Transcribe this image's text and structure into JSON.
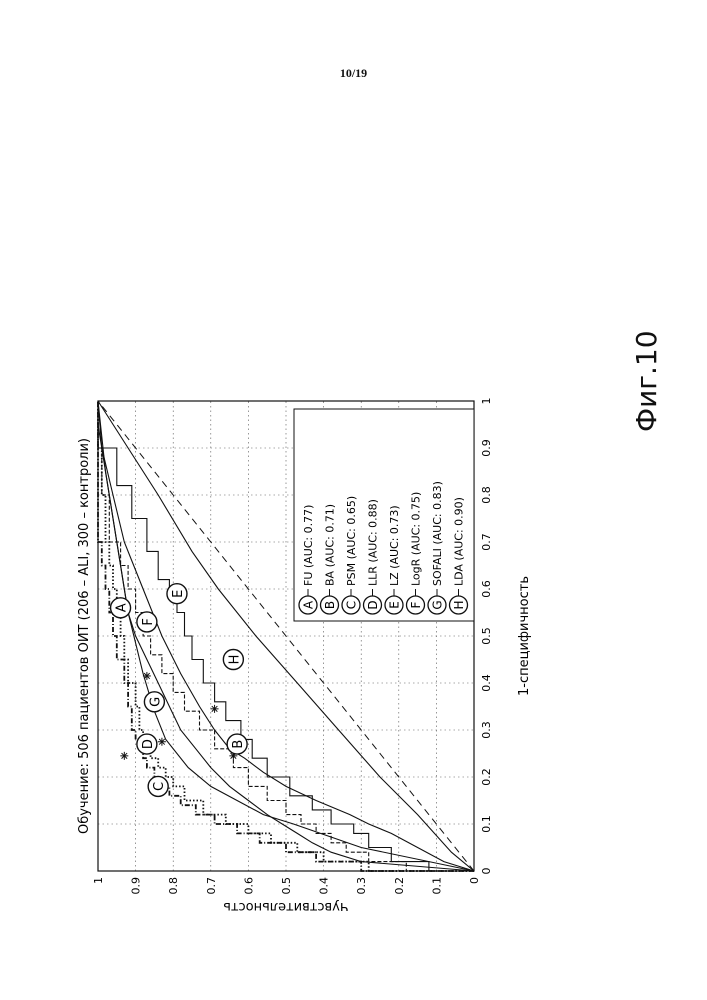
{
  "page_number": "10/19",
  "figure_caption": "Фиг.10",
  "chart_data": {
    "type": "line",
    "title": "Обучение: 506 пациентов ОИТ (206 – ALI, 300 – контроли)",
    "xlabel": "1-специфичность",
    "ylabel": "Чувствительность",
    "xlim": [
      0,
      1
    ],
    "ylim": [
      0,
      1
    ],
    "xticks": [
      "0",
      "0.1",
      "0.2",
      "0.3",
      "0.4",
      "0.5",
      "0.6",
      "0.7",
      "0.8",
      "0.9",
      "1"
    ],
    "yticks": [
      "0",
      "0.1",
      "0.2",
      "0.3",
      "0.4",
      "0.5",
      "0.6",
      "0.7",
      "0.8",
      "0.9",
      "1"
    ],
    "grid": true,
    "legend_position": "lower-right",
    "series": [
      {
        "name": "FU (AUC: 0.77)",
        "marker": "A",
        "style": "solid",
        "x": [
          0,
          0.02,
          0.04,
          0.06,
          0.08,
          0.1,
          0.12,
          0.15,
          0.18,
          0.22,
          0.26,
          0.3,
          0.35,
          0.4,
          0.45,
          0.5,
          0.55,
          0.6,
          0.65,
          0.7,
          0.75,
          0.8,
          0.85,
          0.9,
          0.95,
          1.0
        ],
        "y": [
          0,
          0.3,
          0.38,
          0.43,
          0.47,
          0.51,
          0.55,
          0.6,
          0.65,
          0.7,
          0.74,
          0.78,
          0.81,
          0.84,
          0.87,
          0.9,
          0.92,
          0.93,
          0.94,
          0.95,
          0.96,
          0.97,
          0.98,
          0.99,
          1.0,
          1.0
        ]
      },
      {
        "name": "BA (AUC: 0.71)",
        "marker": "B",
        "style": "solid",
        "x": [
          0,
          0.02,
          0.05,
          0.08,
          0.1,
          0.12,
          0.15,
          0.18,
          0.21,
          0.24,
          0.26,
          0.3,
          0.35,
          0.42,
          0.5,
          0.6,
          0.7,
          0.8,
          0.9,
          1.0
        ],
        "y": [
          0,
          0.08,
          0.15,
          0.22,
          0.28,
          0.33,
          0.42,
          0.5,
          0.56,
          0.61,
          0.65,
          0.69,
          0.73,
          0.78,
          0.83,
          0.88,
          0.93,
          0.96,
          0.99,
          1.0
        ]
      },
      {
        "name": "PSM (AUC: 0.65)",
        "marker": "C",
        "style": "dotted",
        "x": [
          0,
          0.02,
          0.04,
          0.06,
          0.08,
          0.1,
          0.12,
          0.15,
          0.18,
          0.2,
          0.22,
          0.24,
          0.27,
          0.3,
          0.35,
          0.4,
          0.45,
          0.5,
          0.55,
          0.6,
          0.65,
          0.7,
          0.8,
          0.9,
          1.0
        ],
        "y": [
          0,
          0.28,
          0.4,
          0.47,
          0.54,
          0.6,
          0.66,
          0.72,
          0.77,
          0.8,
          0.82,
          0.84,
          0.86,
          0.88,
          0.89,
          0.9,
          0.92,
          0.93,
          0.94,
          0.95,
          0.96,
          0.97,
          0.98,
          0.99,
          1.0
        ]
      },
      {
        "name": "LLR (AUC: 0.88)",
        "marker": "D",
        "style": "dash-dot",
        "x": [
          0,
          0.02,
          0.04,
          0.06,
          0.08,
          0.1,
          0.12,
          0.14,
          0.16,
          0.18,
          0.2,
          0.22,
          0.24,
          0.26,
          0.28,
          0.3,
          0.35,
          0.4,
          0.45,
          0.5,
          0.55,
          0.6,
          0.65,
          0.7,
          0.8,
          0.9,
          1.0
        ],
        "y": [
          0,
          0.3,
          0.42,
          0.5,
          0.57,
          0.63,
          0.69,
          0.74,
          0.78,
          0.81,
          0.83,
          0.85,
          0.87,
          0.88,
          0.89,
          0.9,
          0.91,
          0.92,
          0.93,
          0.95,
          0.96,
          0.97,
          0.98,
          0.99,
          1.0,
          1.0,
          1.0
        ]
      },
      {
        "name": "LZ (AUC: 0.73)",
        "marker": "E",
        "style": "solid-steps",
        "x": [
          0,
          0.02,
          0.05,
          0.08,
          0.1,
          0.13,
          0.16,
          0.2,
          0.24,
          0.28,
          0.32,
          0.36,
          0.4,
          0.45,
          0.5,
          0.55,
          0.58,
          0.62,
          0.68,
          0.75,
          0.82,
          0.9,
          1.0
        ],
        "y": [
          0,
          0.12,
          0.22,
          0.28,
          0.32,
          0.38,
          0.43,
          0.49,
          0.55,
          0.59,
          0.62,
          0.66,
          0.69,
          0.72,
          0.75,
          0.77,
          0.79,
          0.81,
          0.84,
          0.87,
          0.91,
          0.95,
          1.0
        ]
      },
      {
        "name": "LogR (AUC: 0.75)",
        "marker": "F",
        "style": "dashed-steps",
        "x": [
          0,
          0.02,
          0.04,
          0.06,
          0.08,
          0.1,
          0.12,
          0.15,
          0.18,
          0.22,
          0.26,
          0.3,
          0.34,
          0.38,
          0.42,
          0.46,
          0.5,
          0.55,
          0.6,
          0.65,
          0.7,
          0.8,
          0.9,
          1.0
        ],
        "y": [
          0,
          0.18,
          0.28,
          0.34,
          0.38,
          0.42,
          0.46,
          0.5,
          0.55,
          0.6,
          0.64,
          0.69,
          0.73,
          0.77,
          0.8,
          0.83,
          0.86,
          0.88,
          0.9,
          0.92,
          0.94,
          0.97,
          0.99,
          1.0
        ]
      },
      {
        "name": "SOFALI (AUC: 0.83)",
        "marker": "G",
        "style": "solid",
        "x": [
          0,
          0.05,
          0.1,
          0.12,
          0.18,
          0.22,
          0.28,
          0.34,
          0.42,
          0.55,
          0.7,
          0.85,
          1.0
        ],
        "y": [
          0,
          0.3,
          0.48,
          0.56,
          0.7,
          0.76,
          0.82,
          0.85,
          0.88,
          0.92,
          0.95,
          0.98,
          1.0
        ]
      },
      {
        "name": "LDA (AUC: 0.90)",
        "marker": "H",
        "style": "solid",
        "x": [
          0,
          0.04,
          0.12,
          0.2,
          0.3,
          0.4,
          0.5,
          0.6,
          0.68,
          0.8,
          0.9,
          1.0
        ],
        "y": [
          0,
          0.06,
          0.15,
          0.25,
          0.36,
          0.47,
          0.58,
          0.68,
          0.75,
          0.84,
          0.92,
          1.0
        ]
      }
    ],
    "star_markers": [
      {
        "x": 0.245,
        "y": 0.93
      },
      {
        "x": 0.275,
        "y": 0.83
      },
      {
        "x": 0.415,
        "y": 0.87
      },
      {
        "x": 0.345,
        "y": 0.69
      },
      {
        "x": 0.245,
        "y": 0.64
      }
    ],
    "curve_labels": [
      {
        "letter": "A",
        "x": 0.56,
        "y": 0.94
      },
      {
        "letter": "B",
        "x": 0.27,
        "y": 0.63
      },
      {
        "letter": "C",
        "x": 0.18,
        "y": 0.84
      },
      {
        "letter": "D",
        "x": 0.27,
        "y": 0.87
      },
      {
        "letter": "E",
        "x": 0.59,
        "y": 0.79
      },
      {
        "letter": "F",
        "x": 0.53,
        "y": 0.87
      },
      {
        "letter": "G",
        "x": 0.36,
        "y": 0.85
      },
      {
        "letter": "H",
        "x": 0.45,
        "y": 0.64
      }
    ]
  }
}
